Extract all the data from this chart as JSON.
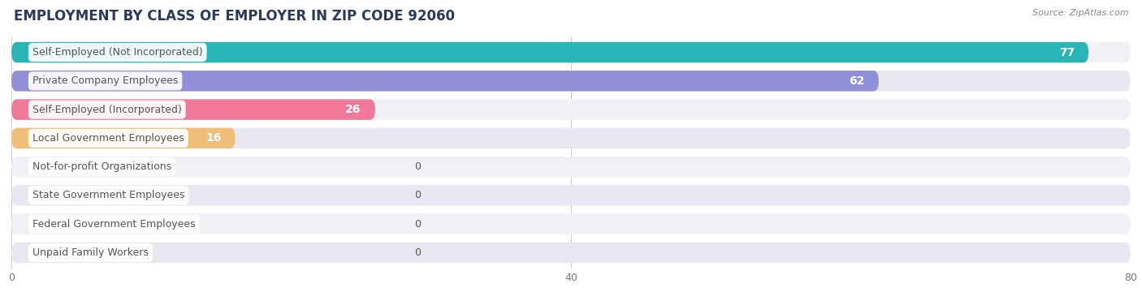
{
  "title": "EMPLOYMENT BY CLASS OF EMPLOYER IN ZIP CODE 92060",
  "source": "Source: ZipAtlas.com",
  "categories": [
    "Self-Employed (Not Incorporated)",
    "Private Company Employees",
    "Self-Employed (Incorporated)",
    "Local Government Employees",
    "Not-for-profit Organizations",
    "State Government Employees",
    "Federal Government Employees",
    "Unpaid Family Workers"
  ],
  "values": [
    77,
    62,
    26,
    16,
    0,
    0,
    0,
    0
  ],
  "bar_colors": [
    "#29b5b5",
    "#9090d8",
    "#f07898",
    "#f0be78",
    "#f0a090",
    "#a8c0e8",
    "#c0a8d8",
    "#60c8c0"
  ],
  "background_color": "#ffffff",
  "row_bg_color_odd": "#f0f0f5",
  "row_bg_color_even": "#e8e8f0",
  "xlim_max": 80,
  "xticks": [
    0,
    40,
    80
  ],
  "title_fontsize": 12,
  "bar_label_fontsize": 9,
  "tick_fontsize": 9,
  "value_color_inside": "#ffffff",
  "value_color_outside": "#555555",
  "cat_label_color": "#555555",
  "title_color": "#2a3a5a",
  "source_color": "#888888"
}
